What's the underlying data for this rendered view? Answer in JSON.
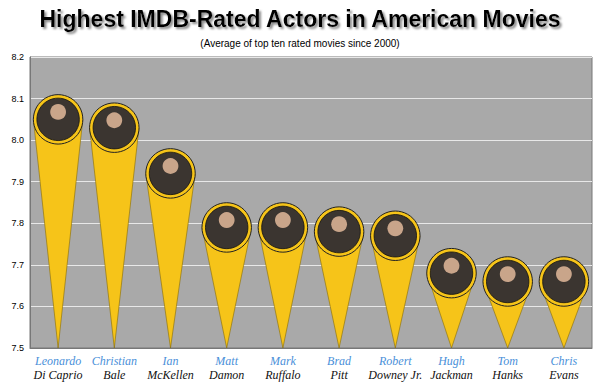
{
  "chart_data": {
    "type": "bar",
    "title": "Highest IMDB-Rated Actors in American Movies",
    "subtitle": "(Average of top ten rated movies since 2000)",
    "categories": [
      "Leonardo\nDi Caprio",
      "Christian\nBale",
      "Ian\nMcKellen",
      "Matt\nDamon",
      "Mark\nRuffalo",
      "Brad\nPitt",
      "Robert\nDowney Jr.",
      "Hugh\nJackman",
      "Tom\nHanks",
      "Chris\nEvans"
    ],
    "values": [
      8.05,
      8.03,
      7.92,
      7.79,
      7.79,
      7.78,
      7.77,
      7.68,
      7.66,
      7.66
    ],
    "color": "#f6c419",
    "ylim": [
      7.5,
      8.2
    ],
    "yticks": [
      7.5,
      7.6,
      7.7,
      7.8,
      7.9,
      {
        "value": 8,
        "label": "8.0"
      },
      8.1,
      8.2
    ],
    "grid": true
  }
}
